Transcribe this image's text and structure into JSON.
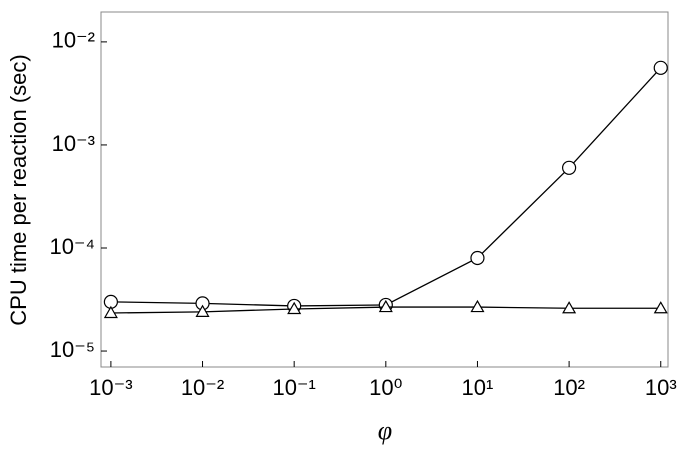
{
  "chart_data": {
    "type": "line",
    "log_x": true,
    "log_y": true,
    "x_label": "φ",
    "y_label": "CPU time per reaction (sec)",
    "x": [
      0.001,
      0.01,
      0.1,
      1,
      10,
      100,
      1000
    ],
    "series": [
      {
        "color": "#000000",
        "marker": "circle",
        "values": [
          3e-05,
          2.9e-05,
          2.74e-05,
          2.8e-05,
          8e-05,
          0.0006,
          0.0056
        ]
      },
      {
        "color": "#000000",
        "marker": "triangle",
        "values": [
          2.34e-05,
          2.4e-05,
          2.56e-05,
          2.67e-05,
          2.67e-05,
          2.6e-05,
          2.6e-05
        ]
      }
    ],
    "xlim": [
      0.00078,
      1200
    ],
    "ylim": [
      7e-06,
      0.0195
    ],
    "xticks": [
      {
        "value": 0.001,
        "label": "10⁻³"
      },
      {
        "value": 0.01,
        "label": "10⁻²"
      },
      {
        "value": 0.1,
        "label": "10⁻¹"
      },
      {
        "value": 1,
        "label": "10⁰"
      },
      {
        "value": 10,
        "label": "10¹"
      },
      {
        "value": 100,
        "label": "10²"
      },
      {
        "value": 1000,
        "label": "10³"
      }
    ],
    "yticks": [
      {
        "value": 1e-05,
        "label": "10⁻⁵"
      },
      {
        "value": 0.0001,
        "label": "10⁻⁴"
      },
      {
        "value": 0.001,
        "label": "10⁻³"
      },
      {
        "value": 0.01,
        "label": "10⁻²"
      }
    ],
    "grid": false
  }
}
